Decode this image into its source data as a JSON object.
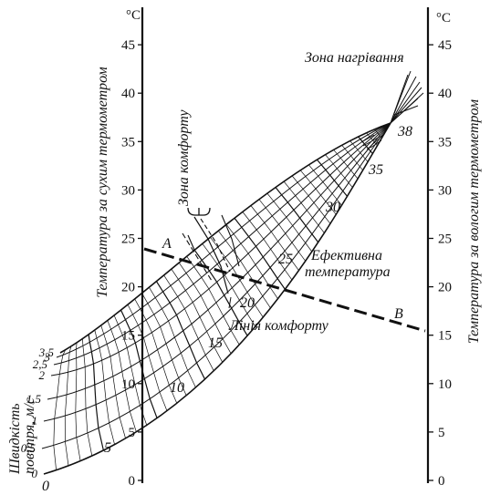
{
  "left_axis": {
    "unit": "°C",
    "title": "Температура за сухим термометром",
    "ticks": [
      "0",
      "5",
      "10",
      "15",
      "20",
      "25",
      "30",
      "35",
      "40",
      "45"
    ]
  },
  "right_axis": {
    "unit": "°C",
    "title": "Температура за вологим термометром",
    "ticks": [
      "0",
      "5",
      "10",
      "15",
      "20",
      "25",
      "30",
      "35",
      "40",
      "45"
    ]
  },
  "speed_axis": {
    "title_line1": "Швидкість",
    "title_line2": "повітря, м/с",
    "values": [
      "0",
      "0,5",
      "1",
      "1,5",
      "2",
      "2,5",
      "3",
      "3,5"
    ]
  },
  "effective_temperature_labels": [
    "0",
    "5",
    "10",
    "15",
    "20",
    "25",
    "30",
    "35",
    "38"
  ],
  "labels": {
    "heating_zone": "Зона нагрівання",
    "comfort_zone": "Зона комфорту",
    "effective_temp_line1": "Ефективна",
    "effective_temp_line2": "температура",
    "comfort_line": "Лінія комфорту",
    "point_a": "A",
    "point_b": "B"
  },
  "colors": {
    "ink": "#111111",
    "background": "#ffffff"
  }
}
